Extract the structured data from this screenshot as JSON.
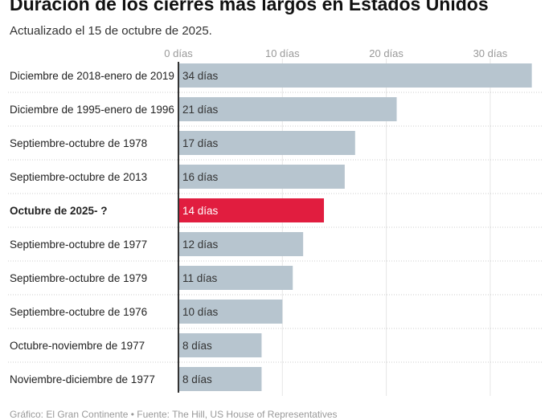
{
  "chart_data": {
    "type": "bar",
    "orientation": "horizontal",
    "title": "Duración de los cierres más largos en Estados Unidos",
    "subtitle": "Actualizado el 15 de octubre de 2025.",
    "categories": [
      "Diciembre de 2018-enero de 2019",
      "Diciembre de 1995-enero de 1996",
      "Septiembre-octubre de 1978",
      "Septiembre-octubre de 2013",
      "Octubre de 2025- ?",
      "Septiembre-octubre de 1977",
      "Septiembre-octubre de 1979",
      "Septiembre-octubre de 1976",
      "Octubre-noviembre de 1977",
      "Noviembre-diciembre de 1977"
    ],
    "values": [
      34,
      21,
      17,
      16,
      14,
      12,
      11,
      10,
      8,
      8
    ],
    "value_labels": [
      "34 días",
      "21 días",
      "17 días",
      "16 días",
      "14 días",
      "12 días",
      "11 días",
      "10 días",
      "8 días",
      "8 días"
    ],
    "highlight_index": 4,
    "xticks": [
      0,
      10,
      20,
      30
    ],
    "xtick_labels": [
      "0 días",
      "10 días",
      "20 días",
      "30 días"
    ],
    "xlim": [
      0,
      34
    ],
    "colors": {
      "default": "#b7c5cf",
      "highlight": "#e11d3f"
    },
    "footer": "Gráfico: El Gran Continente • Fuente: The Hill, US House of Representatives"
  }
}
